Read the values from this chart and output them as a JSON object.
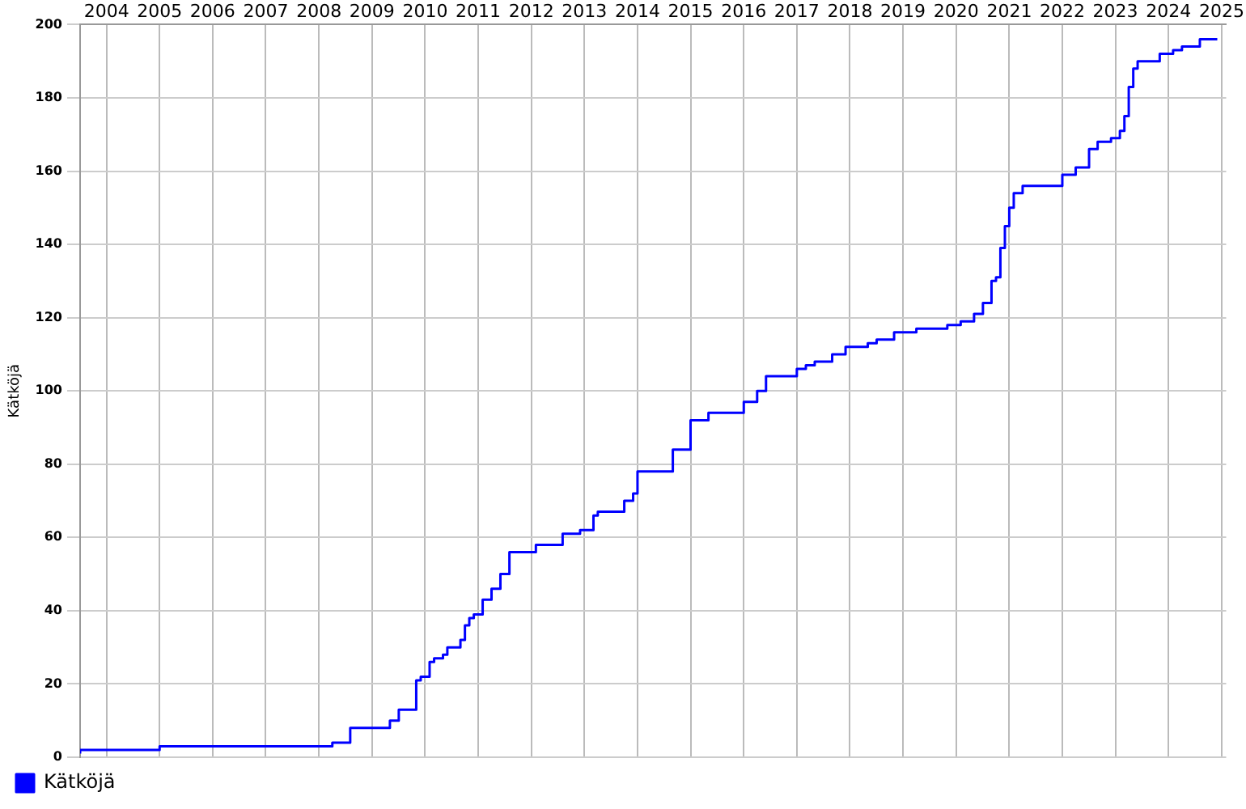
{
  "chart_data": {
    "type": "step",
    "ylabel": "Kätköjä",
    "x": [
      "2004-01",
      "2005-07",
      "2008-10",
      "2009-02",
      "2009-11",
      "2010-01",
      "2010-05",
      "2010-06",
      "2010-08",
      "2010-09",
      "2010-11",
      "2010-12",
      "2011-03",
      "2011-04",
      "2011-05",
      "2011-06",
      "2011-08",
      "2011-10",
      "2011-12",
      "2012-02",
      "2012-08",
      "2013-02",
      "2013-06",
      "2013-09",
      "2013-10",
      "2014-04",
      "2014-06",
      "2014-07",
      "2015-03",
      "2015-07",
      "2015-11",
      "2016-07",
      "2016-10",
      "2016-12",
      "2017-07",
      "2017-09",
      "2017-11",
      "2018-03",
      "2018-06",
      "2018-11",
      "2019-01",
      "2019-05",
      "2019-10",
      "2020-05",
      "2020-08",
      "2020-11",
      "2021-01",
      "2021-03",
      "2021-04",
      "2021-05",
      "2021-06",
      "2021-07",
      "2021-08",
      "2021-10",
      "2022-07",
      "2022-10",
      "2023-01",
      "2023-03",
      "2023-06",
      "2023-08",
      "2023-09",
      "2023-10",
      "2023-11",
      "2023-12",
      "2024-05",
      "2024-08",
      "2024-10",
      "2025-02",
      "2025-03",
      "2025-06"
    ],
    "series": [
      {
        "name": "Kätköjä",
        "color": "#0000ff",
        "values": [
          1,
          2,
          3,
          4,
          8,
          10,
          13,
          21,
          22,
          26,
          27,
          28,
          30,
          32,
          36,
          38,
          39,
          43,
          46,
          50,
          56,
          58,
          61,
          62,
          66,
          67,
          70,
          72,
          78,
          84,
          92,
          94,
          97,
          100,
          104,
          106,
          107,
          108,
          110,
          112,
          113,
          114,
          116,
          117,
          118,
          119,
          121,
          124,
          130,
          131,
          139,
          145,
          150,
          154,
          156,
          159,
          161,
          166,
          168,
          169,
          171,
          175,
          183,
          188,
          190,
          192,
          193,
          194,
          196,
          196
        ]
      }
    ],
    "xlim": [
      "2004-01",
      "2025-08"
    ],
    "xticks": [
      {
        "value": "2004-07",
        "label": "2004"
      },
      {
        "value": "2005-07",
        "label": "2005"
      },
      {
        "value": "2006-07",
        "label": "2006"
      },
      {
        "value": "2007-07",
        "label": "2007"
      },
      {
        "value": "2008-07",
        "label": "2008"
      },
      {
        "value": "2009-07",
        "label": "2009"
      },
      {
        "value": "2010-07",
        "label": "2010"
      },
      {
        "value": "2011-07",
        "label": "2011"
      },
      {
        "value": "2012-07",
        "label": "2012"
      },
      {
        "value": "2013-07",
        "label": "2013"
      },
      {
        "value": "2014-07",
        "label": "2014"
      },
      {
        "value": "2015-07",
        "label": "2015"
      },
      {
        "value": "2016-07",
        "label": "2016"
      },
      {
        "value": "2017-07",
        "label": "2017"
      },
      {
        "value": "2018-07",
        "label": "2018"
      },
      {
        "value": "2019-07",
        "label": "2019"
      },
      {
        "value": "2020-07",
        "label": "2020"
      },
      {
        "value": "2021-07",
        "label": "2021"
      },
      {
        "value": "2022-07",
        "label": "2022"
      },
      {
        "value": "2023-07",
        "label": "2023"
      },
      {
        "value": "2024-07",
        "label": "2024"
      },
      {
        "value": "2025-07",
        "label": "2025"
      }
    ],
    "ylim": [
      0,
      200
    ],
    "yticks": [
      0,
      20,
      40,
      60,
      80,
      100,
      120,
      140,
      160,
      180,
      200
    ],
    "grid": true,
    "legend": "bottom left",
    "marker": "none",
    "line_style": "solid"
  }
}
